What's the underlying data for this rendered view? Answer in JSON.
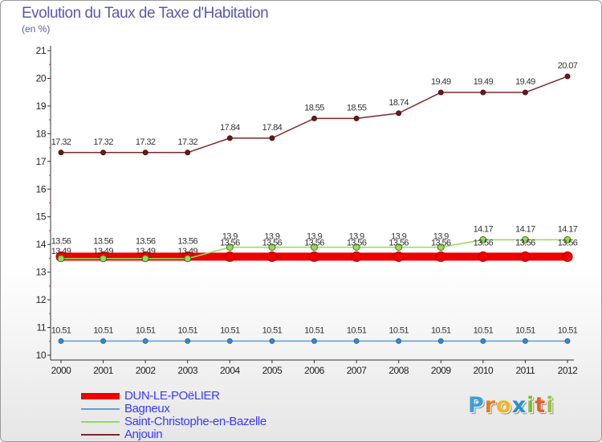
{
  "header": {
    "title": "Evolution du Taux de Taxe d'Habitation",
    "unit": "(en %)"
  },
  "logo": {
    "letters": [
      "P",
      "r",
      "o",
      "x",
      "i",
      "t",
      "i"
    ],
    "colors": [
      "#3aa0d8",
      "#e87a1e",
      "#f0b71e",
      "#2a8fd0",
      "#7cbf2b",
      "#e8612a",
      "#9ac43a"
    ]
  },
  "chart_data": {
    "type": "line",
    "title": "Evolution du Taux de Taxe d'Habitation",
    "ylabel": "(en %)",
    "xlabel": "",
    "ylim": [
      10,
      21
    ],
    "yticks": [
      10,
      11,
      12,
      13,
      14,
      15,
      16,
      17,
      18,
      19,
      20,
      21
    ],
    "categories": [
      "2000",
      "2001",
      "2002",
      "2003",
      "2004",
      "2005",
      "2006",
      "2007",
      "2008",
      "2009",
      "2010",
      "2011",
      "2012"
    ],
    "grid": false,
    "legend_position": "bottom-left",
    "series": [
      {
        "name": "DUN-LE-POëLIER",
        "color": "#ee0000",
        "values": [
          13.56,
          13.56,
          13.56,
          13.56,
          13.56,
          13.56,
          13.56,
          13.56,
          13.56,
          13.56,
          13.56,
          13.56,
          13.56
        ],
        "labels": [
          "13.56",
          "13.56",
          "13.56",
          "13.56",
          "13.56",
          "13.56",
          "13.56",
          "13.56",
          "13.56",
          "13.56",
          "13.56",
          "13.56",
          "13.56"
        ]
      },
      {
        "name": "Bagneux",
        "color": "#5b9fd6",
        "values": [
          10.51,
          10.51,
          10.51,
          10.51,
          10.51,
          10.51,
          10.51,
          10.51,
          10.51,
          10.51,
          10.51,
          10.51,
          10.51
        ],
        "labels": [
          "10.51",
          "10.51",
          "10.51",
          "10.51",
          "10.51",
          "10.51",
          "10.51",
          "10.51",
          "10.51",
          "10.51",
          "10.51",
          "10.51",
          "10.51"
        ]
      },
      {
        "name": "Saint-Christophe-en-Bazelle",
        "color": "#8fdd5a",
        "values": [
          13.49,
          13.49,
          13.49,
          13.49,
          13.9,
          13.9,
          13.9,
          13.9,
          13.9,
          13.9,
          14.17,
          14.17,
          14.17
        ],
        "labels": [
          "13.49",
          "13.49",
          "13.49",
          "13.49",
          "13.9",
          "13.9",
          "13.9",
          "13.9",
          "13.9",
          "13.9",
          "14.17",
          "14.17",
          "14.17"
        ]
      },
      {
        "name": "Anjouin",
        "color": "#7a2a2a",
        "values": [
          17.32,
          17.32,
          17.32,
          17.32,
          17.84,
          17.84,
          18.55,
          18.55,
          18.74,
          19.49,
          19.49,
          19.49,
          20.07
        ],
        "labels": [
          "17.32",
          "17.32",
          "17.32",
          "17.32",
          "17.84",
          "17.84",
          "18.55",
          "18.55",
          "18.74",
          "19.49",
          "19.49",
          "19.49",
          "20.07"
        ]
      }
    ]
  }
}
